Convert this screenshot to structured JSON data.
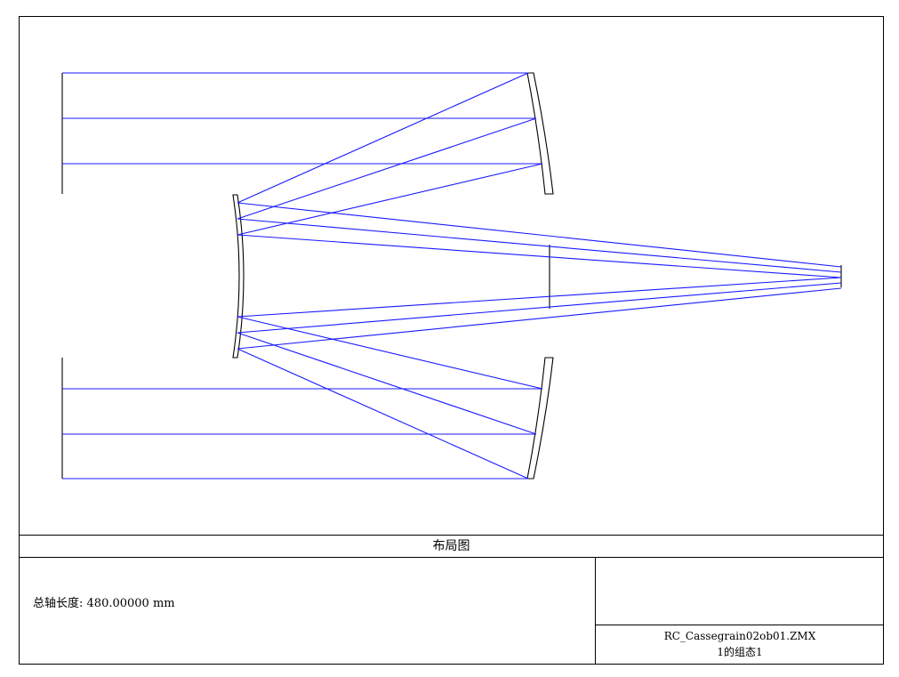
{
  "caption": "布局图",
  "info": {
    "total_length_label": "总轴长度:",
    "total_length_value": "480.00000 mm",
    "filename": "RC_Cassegrain02ob01.ZMX",
    "config": "1的组态1"
  },
  "colors": {
    "ray": "#1a1aff",
    "outline": "#000000"
  }
}
